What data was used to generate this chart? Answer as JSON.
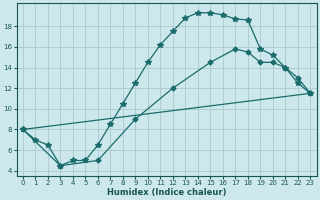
{
  "xlabel": "Humidex (Indice chaleur)",
  "xlim": [
    -0.5,
    23.5
  ],
  "ylim": [
    3.5,
    20.2
  ],
  "yticks": [
    4,
    6,
    8,
    10,
    12,
    14,
    16,
    18
  ],
  "xticks": [
    0,
    1,
    2,
    3,
    4,
    5,
    6,
    7,
    8,
    9,
    10,
    11,
    12,
    13,
    14,
    15,
    16,
    17,
    18,
    19,
    20,
    21,
    22,
    23
  ],
  "bg_color": "#cce8ec",
  "grid_color": "#b0cdd2",
  "line_color": "#1a6b6b",
  "line1_x": [
    0,
    1,
    2,
    3,
    4,
    5,
    6,
    7,
    8,
    9,
    10,
    11,
    12,
    13,
    14,
    15,
    16,
    17,
    18,
    19,
    20,
    21,
    22,
    23
  ],
  "line1_y": [
    8,
    7,
    6.5,
    4.5,
    5,
    5,
    6.5,
    8.5,
    10.5,
    12.5,
    14.5,
    16.2,
    17.5,
    18.8,
    19.3,
    19.3,
    19.1,
    18.7,
    18.6,
    15.8,
    15.2,
    14.0,
    12.5,
    11.5
  ],
  "line2_x": [
    0,
    3,
    6,
    9,
    12,
    15,
    17,
    18,
    19,
    20,
    21,
    22,
    23
  ],
  "line2_y": [
    8,
    4.5,
    5.0,
    9.0,
    12.0,
    14.5,
    15.8,
    15.5,
    14.5,
    14.5,
    14.0,
    13.0,
    11.5
  ],
  "line3_x": [
    0,
    23
  ],
  "line3_y": [
    8,
    11.5
  ]
}
